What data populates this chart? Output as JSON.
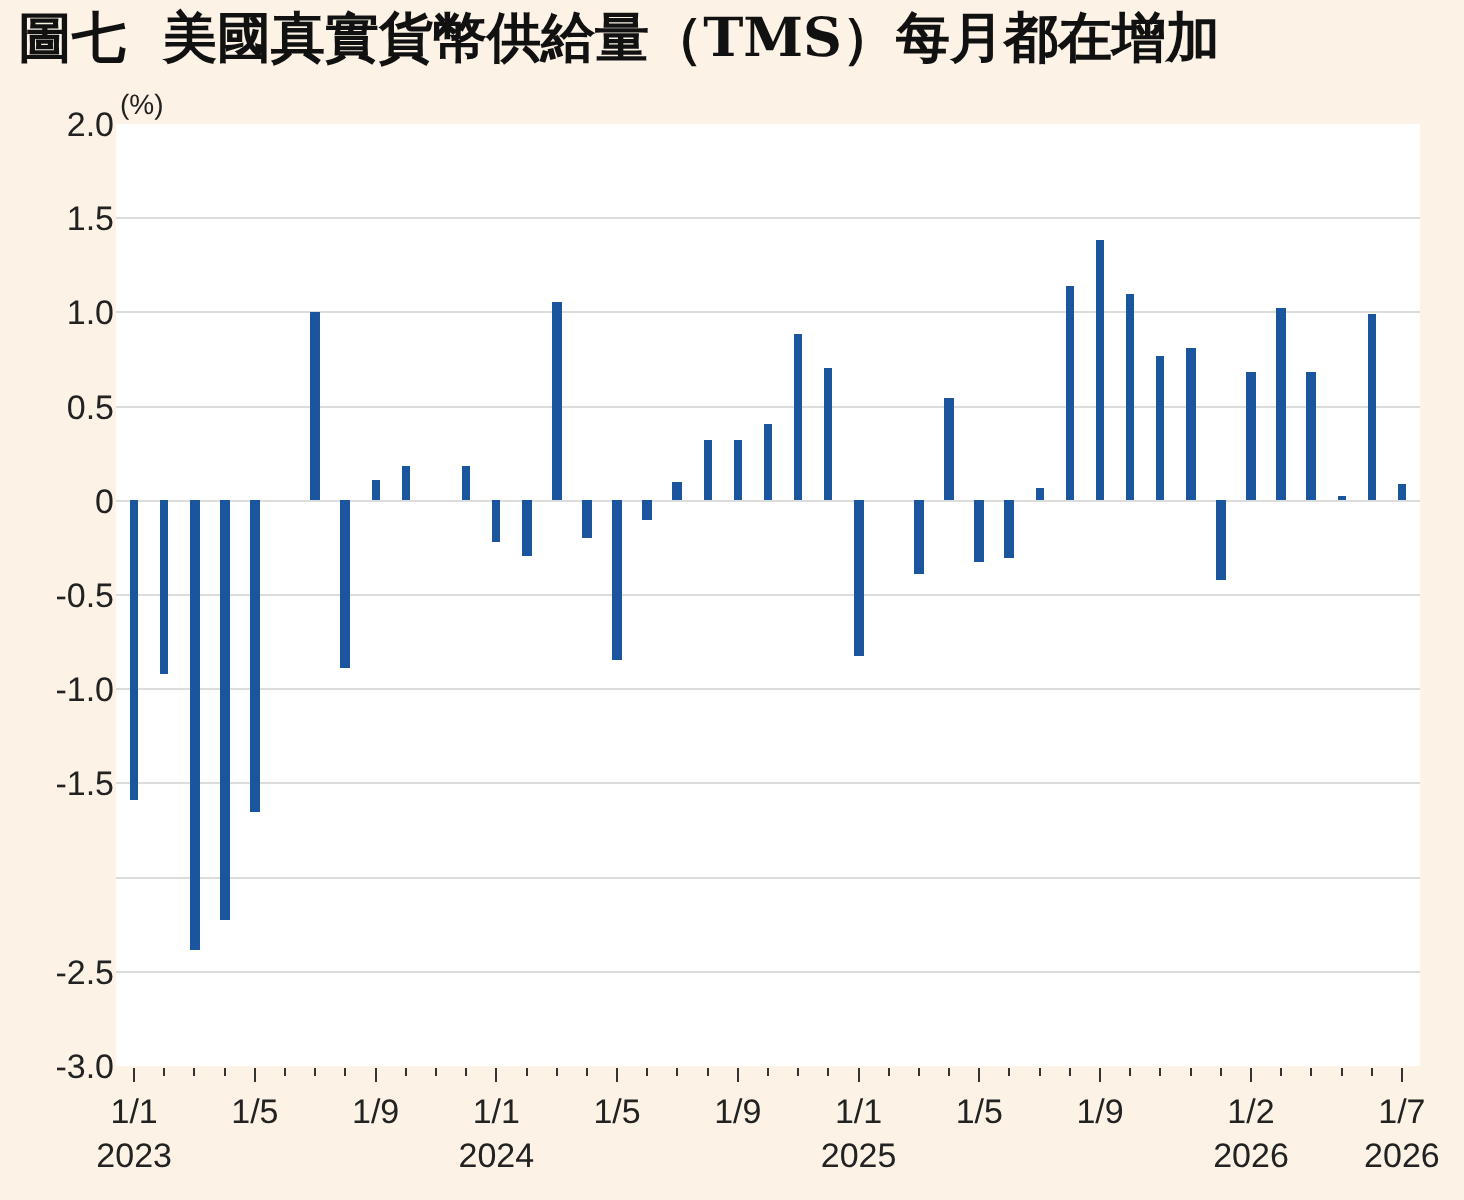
{
  "chart_data": {
    "type": "bar",
    "title": "圖七  美國真實貨幣供給量（TMS）每月都在增加",
    "ylabel": "(%)",
    "categories": [
      "1/1\n2023",
      null,
      null,
      null,
      "1/5",
      null,
      null,
      null,
      "1/9",
      null,
      null,
      null,
      "1/1\n2024",
      null,
      null,
      null,
      "1/5",
      null,
      null,
      null,
      "1/9",
      null,
      null,
      null,
      "1/1\n2025",
      null,
      null,
      null,
      "1/5",
      null,
      null,
      null,
      "1/9",
      null,
      null,
      null,
      null,
      "1/2\n2026",
      null,
      null,
      null,
      null,
      "1/7\n2026"
    ],
    "series": [
      {
        "color": "#1a559e",
        "values": [
          -1.59,
          -0.92,
          -2.38,
          -2.22,
          -1.65,
          0,
          1.0,
          -0.89,
          0.11,
          0.18,
          0,
          0.19,
          -0.22,
          -0.29,
          1.06,
          -0.2,
          -0.84,
          -0.1,
          0.1,
          0.32,
          0.32,
          0.41,
          0.89,
          0.7,
          -0.82,
          0,
          -0.39,
          0.55,
          -0.32,
          -0.3,
          0.07,
          1.14,
          1.38,
          1.1,
          0.77,
          0.81,
          -0.42,
          0.68,
          1.02,
          0.68,
          0.03,
          0.99,
          0.09
        ]
      }
    ],
    "ylim": [
      -3.0,
      2.0
    ],
    "yticks": [
      {
        "value": 2.0,
        "label": "2.0"
      },
      {
        "value": 1.5,
        "label": "1.5"
      },
      {
        "value": 1.0,
        "label": "1.0"
      },
      {
        "value": 0.5,
        "label": "0.5"
      },
      0,
      -0.5,
      {
        "value": -1.0,
        "label": "-1.0"
      },
      -1.5,
      {
        "value": -2.0,
        "label": null
      },
      -2.5,
      {
        "value": -3.0,
        "label": "-3.0"
      }
    ],
    "grid": "y"
  }
}
